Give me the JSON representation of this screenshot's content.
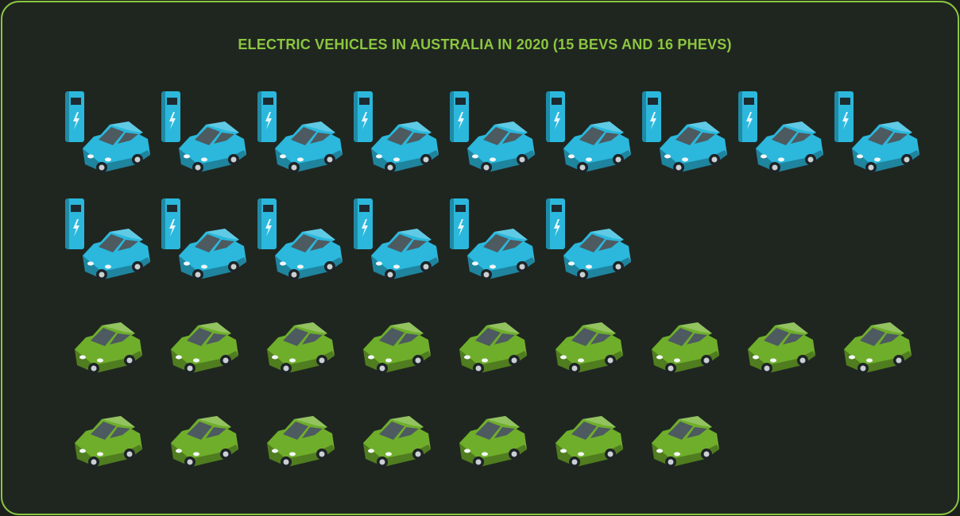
{
  "chart_data": {
    "type": "pictogram",
    "title": "ELECTRIC VEHICLES IN AUSTRALIA IN 2020 (15 BEVS AND 16 PHEVS)",
    "values": [
      15,
      16
    ],
    "colors": [
      "#2bb8dc",
      "#6fae2b"
    ],
    "charger": [
      true,
      false
    ]
  }
}
